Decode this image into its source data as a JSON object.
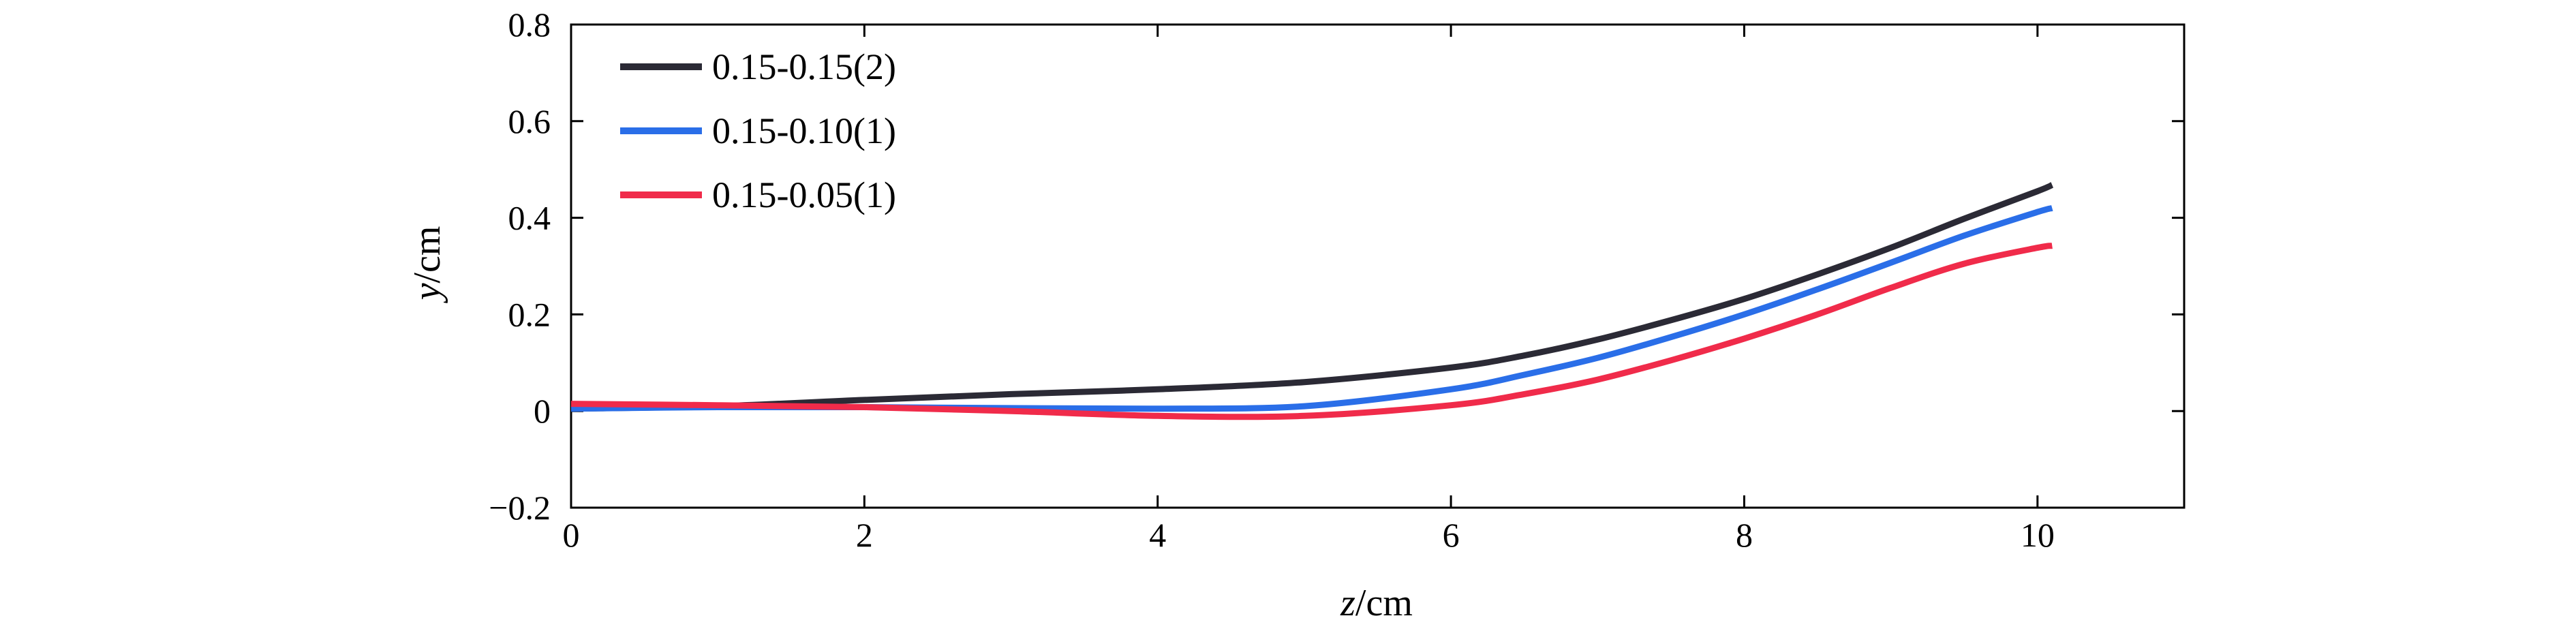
{
  "chart_data": {
    "type": "line",
    "title": "",
    "xlabel": {
      "var": "z",
      "unit": "/cm"
    },
    "ylabel": {
      "var": "y",
      "unit": "/cm"
    },
    "xlim": [
      0,
      11
    ],
    "ylim": [
      -0.2,
      0.8
    ],
    "xticks": [
      0,
      2,
      4,
      6,
      8,
      10
    ],
    "xtick_labels": [
      "0",
      "2",
      "4",
      "6",
      "8",
      "10"
    ],
    "yticks": [
      -0.2,
      0,
      0.2,
      0.4,
      0.6,
      0.8
    ],
    "ytick_labels": [
      "−0.2",
      "0",
      "0.2",
      "0.4",
      "0.6",
      "0.8"
    ],
    "grid": false,
    "legend_position": "top-left",
    "x": [
      0,
      1,
      2,
      3,
      4,
      5,
      6,
      6.5,
      7,
      7.5,
      8,
      8.5,
      9,
      9.5,
      10,
      10.1
    ],
    "series": [
      {
        "name": "0.15-0.15(2)",
        "color": "#2b2a35",
        "values": [
          0.005,
          0.01,
          0.023,
          0.035,
          0.045,
          0.06,
          0.09,
          0.115,
          0.148,
          0.188,
          0.232,
          0.283,
          0.338,
          0.398,
          0.455,
          0.468
        ]
      },
      {
        "name": "0.15-0.10(1)",
        "color": "#2a6ee8",
        "values": [
          0.005,
          0.008,
          0.008,
          0.006,
          0.005,
          0.01,
          0.045,
          0.075,
          0.11,
          0.153,
          0.2,
          0.252,
          0.307,
          0.363,
          0.412,
          0.42
        ]
      },
      {
        "name": "0.15-0.05(1)",
        "color": "#f02b4a",
        "values": [
          0.015,
          0.012,
          0.008,
          0.0,
          -0.01,
          -0.01,
          0.012,
          0.035,
          0.065,
          0.105,
          0.15,
          0.2,
          0.255,
          0.305,
          0.338,
          0.342
        ]
      }
    ]
  }
}
